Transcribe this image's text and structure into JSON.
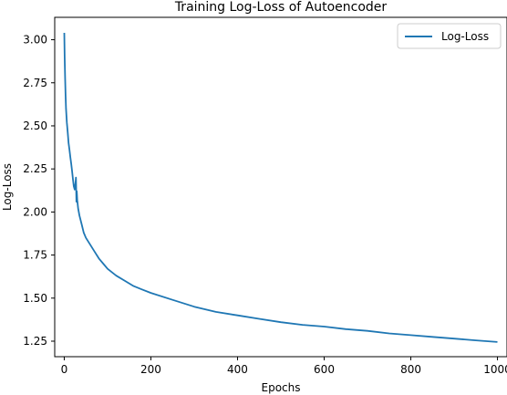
{
  "chart_data": {
    "type": "line",
    "title": "Training Log-Loss of Autoencoder",
    "xlabel": "Epochs",
    "ylabel": "Log-Loss",
    "xlim": [
      -22,
      1022
    ],
    "ylim": [
      1.16,
      3.13
    ],
    "xticks": [
      0,
      200,
      400,
      600,
      800,
      1000
    ],
    "yticks": [
      1.25,
      1.5,
      1.75,
      2.0,
      2.25,
      2.5,
      2.75,
      3.0
    ],
    "xtick_labels": [
      "0",
      "200",
      "400",
      "600",
      "800",
      "1000"
    ],
    "ytick_labels": [
      "1.25",
      "1.50",
      "1.75",
      "2.00",
      "2.25",
      "2.50",
      "2.75",
      "3.00"
    ],
    "grid": false,
    "legend_position": "top-right",
    "series": [
      {
        "name": "Log-Loss",
        "color": "#1f77b4",
        "x": [
          0,
          1,
          2,
          3,
          4,
          6,
          8,
          10,
          12,
          14,
          16,
          18,
          20,
          22,
          24,
          26,
          27,
          28,
          29,
          30,
          32,
          35,
          40,
          45,
          50,
          60,
          70,
          80,
          90,
          100,
          120,
          140,
          160,
          180,
          200,
          250,
          300,
          350,
          400,
          450,
          500,
          550,
          600,
          650,
          700,
          750,
          800,
          850,
          900,
          950,
          1000
        ],
        "y": [
          3.04,
          2.9,
          2.78,
          2.68,
          2.6,
          2.52,
          2.46,
          2.4,
          2.36,
          2.32,
          2.28,
          2.24,
          2.19,
          2.15,
          2.13,
          2.17,
          2.2,
          2.06,
          2.12,
          2.07,
          2.02,
          1.98,
          1.93,
          1.88,
          1.85,
          1.81,
          1.77,
          1.73,
          1.7,
          1.67,
          1.63,
          1.6,
          1.57,
          1.55,
          1.53,
          1.49,
          1.45,
          1.42,
          1.4,
          1.38,
          1.36,
          1.345,
          1.335,
          1.32,
          1.31,
          1.295,
          1.285,
          1.275,
          1.265,
          1.255,
          1.245
        ]
      }
    ]
  }
}
